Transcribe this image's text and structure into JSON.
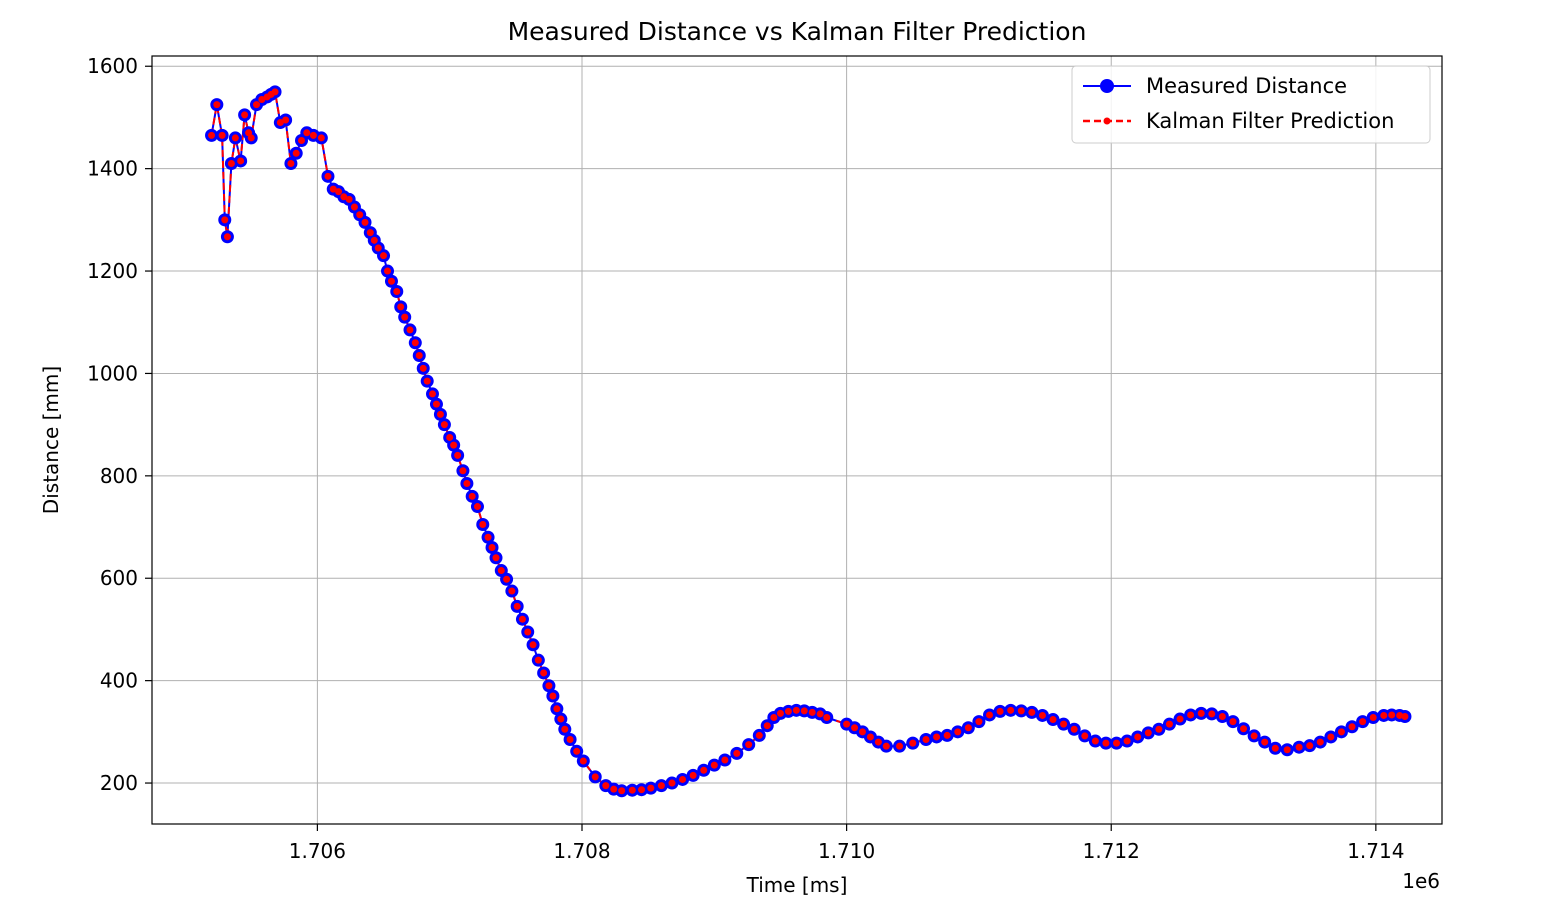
{
  "chart_data": {
    "type": "line",
    "title": "Measured Distance vs Kalman Filter Prediction",
    "xlabel": "Time [ms]",
    "ylabel": "Distance [mm]",
    "x_offset_label": "1e6",
    "xlim": [
      1704750,
      1714500
    ],
    "ylim": [
      120,
      1620
    ],
    "x_ticks": [
      1706000,
      1708000,
      1710000,
      1712000,
      1714000
    ],
    "x_tick_labels": [
      "1.706",
      "1.708",
      "1.710",
      "1.712",
      "1.714"
    ],
    "y_ticks": [
      200,
      400,
      600,
      800,
      1000,
      1200,
      1400,
      1600
    ],
    "y_tick_labels": [
      "200",
      "400",
      "600",
      "800",
      "1000",
      "1200",
      "1400",
      "1600"
    ],
    "grid": true,
    "legend_position": "top-right",
    "series": [
      {
        "name": "Measured Distance",
        "color": "#0000ff",
        "style": "solid-line-circle-markers"
      },
      {
        "name": "Kalman Filter Prediction",
        "color": "#ff0000",
        "style": "dashed-line-dot-markers"
      }
    ],
    "points": [
      [
        1705200,
        1465
      ],
      [
        1705240,
        1525
      ],
      [
        1705280,
        1465
      ],
      [
        1705300,
        1300
      ],
      [
        1705320,
        1267
      ],
      [
        1705350,
        1410
      ],
      [
        1705380,
        1460
      ],
      [
        1705420,
        1415
      ],
      [
        1705450,
        1505
      ],
      [
        1705480,
        1470
      ],
      [
        1705500,
        1460
      ],
      [
        1705540,
        1525
      ],
      [
        1705580,
        1535
      ],
      [
        1705620,
        1540
      ],
      [
        1705650,
        1545
      ],
      [
        1705680,
        1550
      ],
      [
        1705720,
        1490
      ],
      [
        1705760,
        1495
      ],
      [
        1705800,
        1410
      ],
      [
        1705840,
        1430
      ],
      [
        1705880,
        1455
      ],
      [
        1705920,
        1470
      ],
      [
        1705970,
        1465
      ],
      [
        1706030,
        1460
      ],
      [
        1706080,
        1385
      ],
      [
        1706120,
        1360
      ],
      [
        1706160,
        1355
      ],
      [
        1706200,
        1345
      ],
      [
        1706240,
        1340
      ],
      [
        1706280,
        1325
      ],
      [
        1706320,
        1310
      ],
      [
        1706360,
        1295
      ],
      [
        1706400,
        1275
      ],
      [
        1706430,
        1260
      ],
      [
        1706460,
        1245
      ],
      [
        1706500,
        1230
      ],
      [
        1706530,
        1200
      ],
      [
        1706560,
        1180
      ],
      [
        1706600,
        1160
      ],
      [
        1706630,
        1130
      ],
      [
        1706660,
        1110
      ],
      [
        1706700,
        1085
      ],
      [
        1706740,
        1060
      ],
      [
        1706770,
        1035
      ],
      [
        1706800,
        1010
      ],
      [
        1706830,
        985
      ],
      [
        1706870,
        960
      ],
      [
        1706900,
        940
      ],
      [
        1706930,
        920
      ],
      [
        1706960,
        900
      ],
      [
        1707000,
        875
      ],
      [
        1707030,
        860
      ],
      [
        1707060,
        840
      ],
      [
        1707100,
        810
      ],
      [
        1707130,
        785
      ],
      [
        1707170,
        760
      ],
      [
        1707210,
        740
      ],
      [
        1707250,
        705
      ],
      [
        1707290,
        680
      ],
      [
        1707320,
        660
      ],
      [
        1707350,
        640
      ],
      [
        1707390,
        615
      ],
      [
        1707430,
        598
      ],
      [
        1707470,
        575
      ],
      [
        1707510,
        545
      ],
      [
        1707550,
        520
      ],
      [
        1707590,
        495
      ],
      [
        1707630,
        470
      ],
      [
        1707670,
        440
      ],
      [
        1707710,
        415
      ],
      [
        1707750,
        390
      ],
      [
        1707780,
        370
      ],
      [
        1707810,
        345
      ],
      [
        1707840,
        325
      ],
      [
        1707870,
        305
      ],
      [
        1707910,
        285
      ],
      [
        1707960,
        262
      ],
      [
        1708010,
        243
      ],
      [
        1708100,
        212
      ],
      [
        1708180,
        195
      ],
      [
        1708240,
        188
      ],
      [
        1708300,
        185
      ],
      [
        1708380,
        186
      ],
      [
        1708450,
        187
      ],
      [
        1708520,
        190
      ],
      [
        1708600,
        195
      ],
      [
        1708680,
        200
      ],
      [
        1708760,
        207
      ],
      [
        1708840,
        215
      ],
      [
        1708920,
        225
      ],
      [
        1709000,
        235
      ],
      [
        1709080,
        245
      ],
      [
        1709170,
        258
      ],
      [
        1709260,
        275
      ],
      [
        1709340,
        293
      ],
      [
        1709400,
        312
      ],
      [
        1709450,
        328
      ],
      [
        1709500,
        336
      ],
      [
        1709560,
        340
      ],
      [
        1709620,
        342
      ],
      [
        1709680,
        341
      ],
      [
        1709740,
        338
      ],
      [
        1709800,
        335
      ],
      [
        1709850,
        328
      ],
      [
        1710000,
        315
      ],
      [
        1710060,
        308
      ],
      [
        1710120,
        300
      ],
      [
        1710180,
        290
      ],
      [
        1710240,
        280
      ],
      [
        1710300,
        272
      ],
      [
        1710400,
        272
      ],
      [
        1710500,
        278
      ],
      [
        1710600,
        285
      ],
      [
        1710680,
        290
      ],
      [
        1710760,
        293
      ],
      [
        1710840,
        300
      ],
      [
        1710920,
        308
      ],
      [
        1711000,
        320
      ],
      [
        1711080,
        333
      ],
      [
        1711160,
        340
      ],
      [
        1711240,
        342
      ],
      [
        1711320,
        341
      ],
      [
        1711400,
        338
      ],
      [
        1711480,
        332
      ],
      [
        1711560,
        324
      ],
      [
        1711640,
        315
      ],
      [
        1711720,
        305
      ],
      [
        1711800,
        292
      ],
      [
        1711880,
        282
      ],
      [
        1711960,
        278
      ],
      [
        1712040,
        278
      ],
      [
        1712120,
        282
      ],
      [
        1712200,
        290
      ],
      [
        1712280,
        298
      ],
      [
        1712360,
        305
      ],
      [
        1712440,
        315
      ],
      [
        1712520,
        325
      ],
      [
        1712600,
        333
      ],
      [
        1712680,
        336
      ],
      [
        1712760,
        335
      ],
      [
        1712840,
        330
      ],
      [
        1712920,
        320
      ],
      [
        1713000,
        306
      ],
      [
        1713080,
        292
      ],
      [
        1713160,
        280
      ],
      [
        1713240,
        268
      ],
      [
        1713330,
        265
      ],
      [
        1713420,
        270
      ],
      [
        1713500,
        273
      ],
      [
        1713580,
        280
      ],
      [
        1713660,
        290
      ],
      [
        1713740,
        300
      ],
      [
        1713820,
        310
      ],
      [
        1713900,
        320
      ],
      [
        1713980,
        328
      ],
      [
        1714060,
        332
      ],
      [
        1714120,
        333
      ],
      [
        1714180,
        332
      ],
      [
        1714220,
        330
      ]
    ]
  }
}
